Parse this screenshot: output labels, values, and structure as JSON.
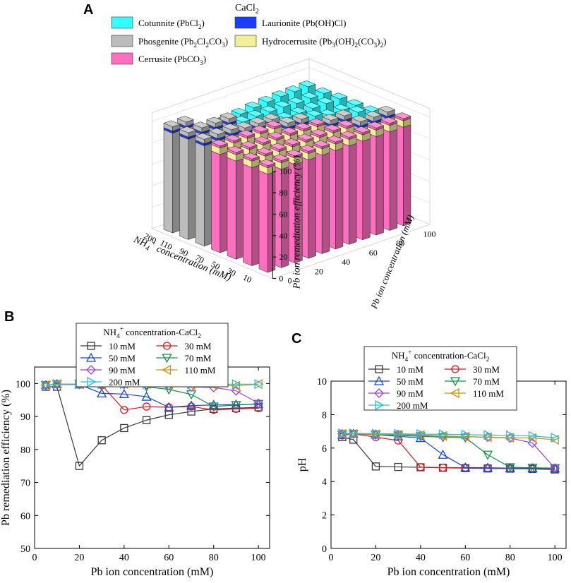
{
  "chart_data": [
    {
      "id": "A",
      "type": "bar3d",
      "panel_label": "A",
      "title": "CaCl2",
      "legend": [
        {
          "key": "cotunnite",
          "label": "Cotunnite (PbCl2)",
          "color": "#33ffff"
        },
        {
          "key": "laurionite",
          "label": "Laurionite (Pb(OH)Cl)",
          "color": "#1a3cff"
        },
        {
          "key": "phosgenite",
          "label": "Phosgenite (Pb2Cl2CO3)",
          "color": "#bcbcbc"
        },
        {
          "key": "hydrocerrusite",
          "label": "Hydrocerrusite (Pb3(OH)2(CO3)2)",
          "color": "#f2ef9a"
        },
        {
          "key": "cerrusite",
          "label": "Cerrusite (PbCO3)",
          "color": "#ff6fbf"
        }
      ],
      "zlabel": "Pb ion remediation efficiency (%)",
      "ylabel": "Pb ion concentration (mM)",
      "xlabel": "NH4+ concentration (mM)",
      "z_ticks": [
        "0",
        "20",
        "40",
        "60",
        "80",
        "100"
      ],
      "y_ticks": [
        "0",
        "20",
        "40",
        "60",
        "80",
        "100"
      ],
      "x_ticks": [
        "200",
        "110",
        "90",
        "70",
        "50",
        "30",
        "10"
      ],
      "nh4_levels": [
        200,
        110,
        90,
        70,
        50,
        30,
        10
      ],
      "pb_levels": [
        5,
        10,
        20,
        30,
        40,
        50,
        60,
        70,
        80,
        90,
        100
      ],
      "efficiency": {
        "10": [
          99.0,
          99.0,
          75.0,
          82.8,
          86.5,
          88.9,
          90.5,
          91.5,
          92.3,
          92.5,
          92.8
        ],
        "30": [
          99.5,
          99.7,
          99.7,
          99.5,
          92.0,
          93.0,
          92.8,
          93.0,
          92.0,
          92.3,
          92.5
        ],
        "50": [
          99.5,
          99.8,
          99.7,
          97.0,
          96.8,
          96.0,
          92.8,
          93.3,
          93.5,
          93.6,
          93.7
        ],
        "70": [
          99.5,
          99.8,
          99.8,
          99.6,
          99.8,
          99.0,
          98.2,
          96.7,
          93.0,
          93.5,
          93.8
        ],
        "90": [
          99.5,
          99.8,
          99.8,
          99.8,
          99.8,
          99.6,
          99.4,
          99.0,
          98.8,
          97.8,
          94.0
        ],
        "110": [
          99.5,
          99.8,
          99.8,
          99.8,
          99.8,
          99.8,
          99.8,
          99.5,
          99.5,
          99.3,
          99.8
        ],
        "200": [
          99.5,
          99.8,
          99.8,
          99.8,
          99.8,
          99.8,
          99.8,
          99.8,
          99.8,
          99.8,
          99.8
        ]
      },
      "legend_placement": "top-left"
    },
    {
      "id": "B",
      "type": "line",
      "panel_label": "B",
      "legend_title": "NH4+ concentration-CaCl2",
      "legend_placement": "top",
      "xlabel": "Pb ion concentration (mM)",
      "ylabel": "Pb remediation efficiency (%)",
      "xlim": [
        0,
        105
      ],
      "ylim": [
        50,
        105
      ],
      "x_ticks": [
        0,
        20,
        40,
        60,
        80,
        100
      ],
      "y_ticks": [
        50,
        60,
        70,
        80,
        90,
        100
      ],
      "x": [
        5,
        10,
        20,
        30,
        40,
        50,
        60,
        70,
        80,
        90,
        100
      ],
      "series": [
        {
          "name": "10 mM",
          "color": "#3a3a3a",
          "marker": "square",
          "values": [
            99.0,
            99.0,
            75.0,
            82.8,
            86.5,
            88.9,
            90.5,
            91.5,
            92.3,
            92.5,
            92.8
          ]
        },
        {
          "name": "30 mM",
          "color": "#e8141b",
          "marker": "circle",
          "values": [
            99.5,
            99.7,
            99.7,
            99.5,
            92.0,
            93.0,
            92.8,
            93.0,
            92.0,
            92.3,
            92.5
          ]
        },
        {
          "name": "50 mM",
          "color": "#1646e0",
          "marker": "triangle-up",
          "values": [
            99.5,
            99.8,
            99.7,
            97.0,
            96.8,
            96.0,
            92.8,
            93.3,
            93.5,
            93.6,
            93.7
          ]
        },
        {
          "name": "70 mM",
          "color": "#109048",
          "marker": "triangle-down",
          "values": [
            99.5,
            99.8,
            99.8,
            99.6,
            99.8,
            99.0,
            98.2,
            96.7,
            93.0,
            93.5,
            93.8
          ]
        },
        {
          "name": "90 mM",
          "color": "#a23fe0",
          "marker": "diamond",
          "values": [
            99.5,
            99.8,
            99.8,
            99.8,
            99.8,
            99.6,
            99.4,
            99.0,
            98.8,
            97.8,
            94.0
          ]
        },
        {
          "name": "110 mM",
          "color": "#c99500",
          "marker": "triangle-left",
          "values": [
            99.5,
            99.8,
            99.8,
            99.8,
            99.8,
            99.8,
            99.8,
            99.5,
            99.5,
            99.3,
            99.8
          ]
        },
        {
          "name": "200 mM",
          "color": "#21c0d6",
          "marker": "triangle-right",
          "values": [
            99.5,
            99.8,
            99.8,
            99.8,
            99.8,
            99.8,
            99.8,
            99.8,
            99.8,
            99.8,
            99.8
          ]
        }
      ]
    },
    {
      "id": "C",
      "type": "line",
      "panel_label": "C",
      "legend_title": "NH4+ concentration-CaCl2",
      "legend_placement": "top",
      "xlabel": "Pb ion concentration (mM)",
      "ylabel": "pH",
      "xlim": [
        0,
        105
      ],
      "ylim": [
        0,
        10
      ],
      "x_ticks": [
        0,
        20,
        40,
        60,
        80,
        100
      ],
      "y_ticks": [
        0,
        2,
        4,
        6,
        8,
        10
      ],
      "x": [
        5,
        10,
        20,
        30,
        40,
        50,
        60,
        70,
        80,
        90,
        100
      ],
      "series": [
        {
          "name": "10 mM",
          "color": "#3a3a3a",
          "marker": "square",
          "values": [
            6.65,
            6.5,
            4.9,
            4.87,
            4.85,
            4.82,
            4.8,
            4.78,
            4.77,
            4.75,
            4.72
          ]
        },
        {
          "name": "30 mM",
          "color": "#e8141b",
          "marker": "circle",
          "values": [
            6.75,
            6.85,
            6.65,
            6.45,
            4.86,
            4.83,
            4.82,
            4.8,
            4.79,
            4.78,
            4.76
          ]
        },
        {
          "name": "50 mM",
          "color": "#1646e0",
          "marker": "triangle-up",
          "values": [
            6.8,
            6.85,
            6.8,
            6.7,
            6.6,
            5.6,
            4.84,
            4.82,
            4.8,
            4.79,
            4.78
          ]
        },
        {
          "name": "70 mM",
          "color": "#109048",
          "marker": "triangle-down",
          "values": [
            6.8,
            6.85,
            6.8,
            6.75,
            6.7,
            6.65,
            6.62,
            5.6,
            4.85,
            4.82,
            4.8
          ]
        },
        {
          "name": "90 mM",
          "color": "#a23fe0",
          "marker": "diamond",
          "values": [
            6.85,
            6.85,
            6.82,
            6.8,
            6.75,
            6.7,
            6.68,
            6.65,
            6.6,
            6.3,
            4.8
          ]
        },
        {
          "name": "110 mM",
          "color": "#c99500",
          "marker": "triangle-left",
          "values": [
            6.85,
            6.85,
            6.82,
            6.8,
            6.78,
            6.72,
            6.68,
            6.65,
            6.62,
            6.6,
            6.5
          ]
        },
        {
          "name": "200 mM",
          "color": "#21c0d6",
          "marker": "triangle-right",
          "values": [
            6.88,
            6.88,
            6.86,
            6.85,
            6.83,
            6.82,
            6.8,
            6.78,
            6.76,
            6.72,
            6.62
          ]
        }
      ]
    }
  ]
}
